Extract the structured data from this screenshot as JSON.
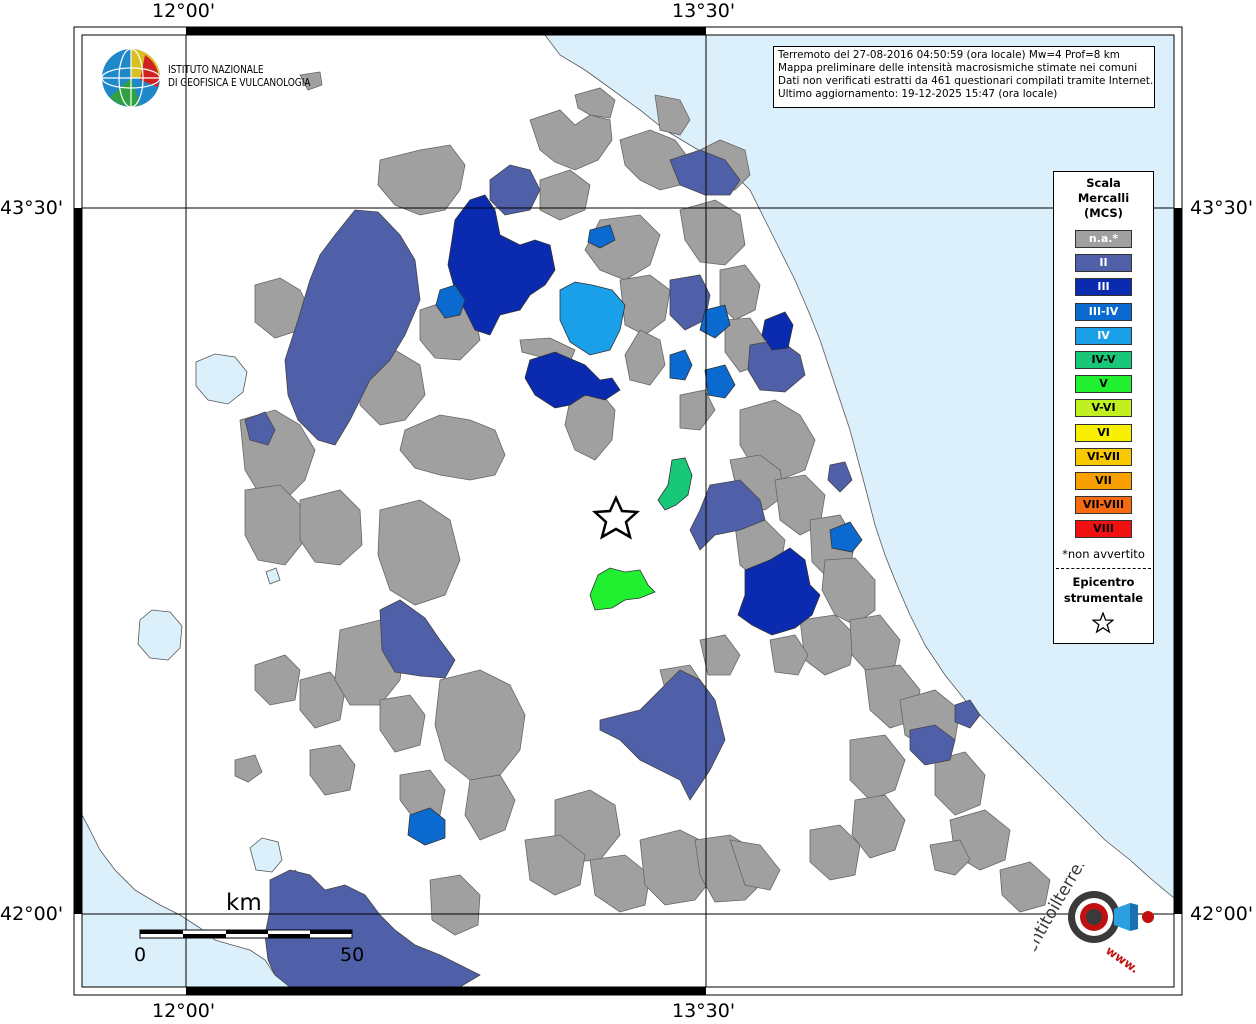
{
  "institute": {
    "line1": "ISTITUTO NAZIONALE",
    "line2": "DI GEOFISICA E VULCANOLOGIA"
  },
  "info": {
    "line1": "Terremoto del 27-08-2016 04:50:59 (ora locale) Mw=4 Prof=8 km",
    "line2": "Mappa preliminare delle intensità macrosismiche stimate nei comuni",
    "line3": "Dati non verificati estratti da 461 questionari compilati tramite Internet.",
    "line4": "Ultimo aggiornamento: 19-12-2025 15:47 (ora locale)"
  },
  "coords": {
    "lon_west": "12°00'",
    "lon_east": "13°30'",
    "lat_north": "43°30'",
    "lat_south": "42°00'"
  },
  "legend": {
    "title1": "Scala",
    "title2": "Mercalli",
    "title3": "(MCS)",
    "items": [
      {
        "label": "n.a.*",
        "color": "#a0a0a0",
        "text_color": "#ffffff"
      },
      {
        "label": "II",
        "color": "#5060a8",
        "text_color": "#ffffff"
      },
      {
        "label": "III",
        "color": "#0a2bb0",
        "text_color": "#ffffff"
      },
      {
        "label": "III-IV",
        "color": "#0a6ad0",
        "text_color": "#ffffff"
      },
      {
        "label": "IV",
        "color": "#1aa0e8",
        "text_color": "#ffffff"
      },
      {
        "label": "IV-V",
        "color": "#18c878",
        "text_color": "#000000"
      },
      {
        "label": "V",
        "color": "#20f030",
        "text_color": "#000000"
      },
      {
        "label": "V-VI",
        "color": "#c0f020",
        "text_color": "#000000"
      },
      {
        "label": "VI",
        "color": "#f8f000",
        "text_color": "#000000"
      },
      {
        "label": "VI-VII",
        "color": "#f8c800",
        "text_color": "#000000"
      },
      {
        "label": "VII",
        "color": "#f8a000",
        "text_color": "#000000"
      },
      {
        "label": "VII-VIII",
        "color": "#f86a10",
        "text_color": "#000000"
      },
      {
        "label": "VIII",
        "color": "#f01010",
        "text_color": "#000000"
      }
    ],
    "note": "*non avvertito",
    "epicenter1": "Epicentro",
    "epicenter2": "strumentale"
  },
  "scale_bar": {
    "unit": "km",
    "start": "0",
    "end": "50"
  },
  "hsv": {
    "text": "haisentitoilterremoto.it",
    "www": "www."
  },
  "colors": {
    "sea": "#dcf0fc",
    "land": "#ffffff",
    "na": "#a0a0a0",
    "II": "#5060a8",
    "III": "#0a2bb0",
    "III_IV": "#0a6ad0",
    "IV": "#1aa0e8",
    "IV_V": "#18c878",
    "V": "#20f030"
  }
}
